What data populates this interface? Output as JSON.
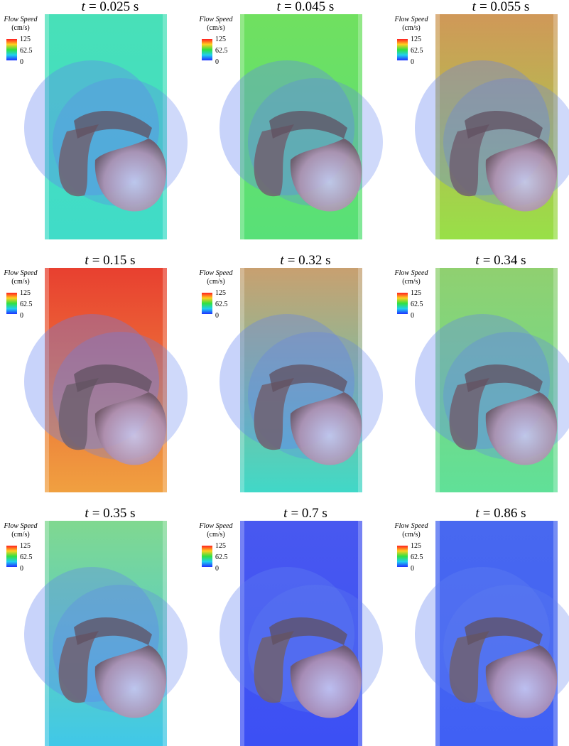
{
  "colorbar": {
    "title": "Flow Speed",
    "unit": "(cm/s)",
    "ticks": [
      "125",
      "62.5",
      "0"
    ]
  },
  "panels": [
    {
      "symbol": "t",
      "time": "= 0.025 s"
    },
    {
      "symbol": "t",
      "time": "= 0.045 s"
    },
    {
      "symbol": "t",
      "time": "= 0.055 s"
    },
    {
      "symbol": "t",
      "time": "= 0.15 s"
    },
    {
      "symbol": "t",
      "time": "= 0.32 s"
    },
    {
      "symbol": "t",
      "time": "= 0.34 s"
    },
    {
      "symbol": "t",
      "time": "= 0.35 s"
    },
    {
      "symbol": "t",
      "time": "= 0.7 s"
    },
    {
      "symbol": "t",
      "time": "= 0.86 s"
    }
  ]
}
